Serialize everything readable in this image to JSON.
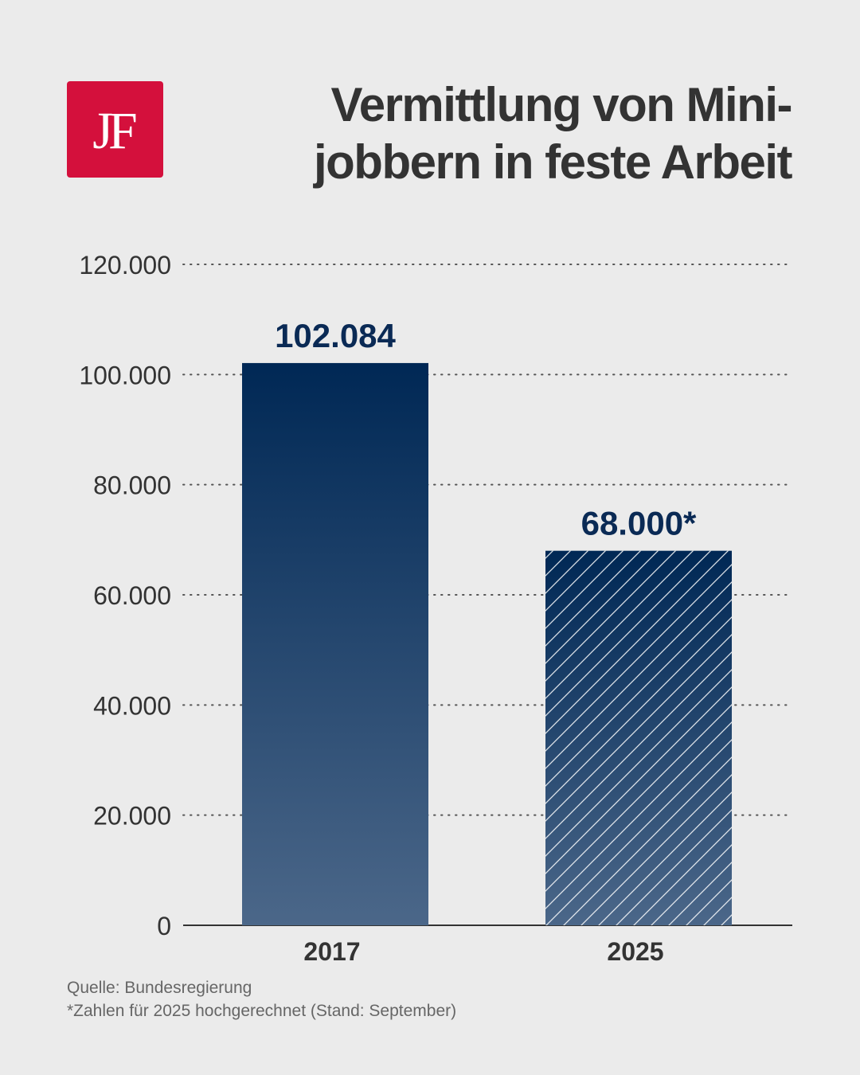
{
  "brand": {
    "logo_text": "JF"
  },
  "header": {
    "title_lines": [
      "Vermittlung von Mini-",
      "jobbern in feste Arbeit"
    ]
  },
  "footer": {
    "source": "Quelle: Bundesregierung",
    "note": "*Zahlen für 2025 hochgerechnet (Stand: September)"
  },
  "colors": {
    "brand_red": "#d4103c",
    "bar_top": "#002855",
    "bar_bottom": "#4b6789",
    "value_label": "#0a2a55",
    "background": "#ebebeb"
  },
  "chart_data": {
    "type": "bar",
    "title": "Vermittlung von Mini-jobbern in feste Arbeit",
    "xlabel": "",
    "ylabel": "",
    "categories": [
      "2017",
      "2025"
    ],
    "values": [
      102084,
      68000
    ],
    "value_labels": [
      "102.084",
      "68.000*"
    ],
    "hatched": [
      false,
      true
    ],
    "ylim": [
      0,
      120000
    ],
    "yticks": [
      0,
      20000,
      40000,
      60000,
      80000,
      100000,
      120000
    ],
    "ytick_labels": [
      "0",
      "20.000",
      "40.000",
      "60.000",
      "80.000",
      "100.000",
      "120.000"
    ],
    "grid": "dotted-horizontal",
    "legend": "none"
  }
}
